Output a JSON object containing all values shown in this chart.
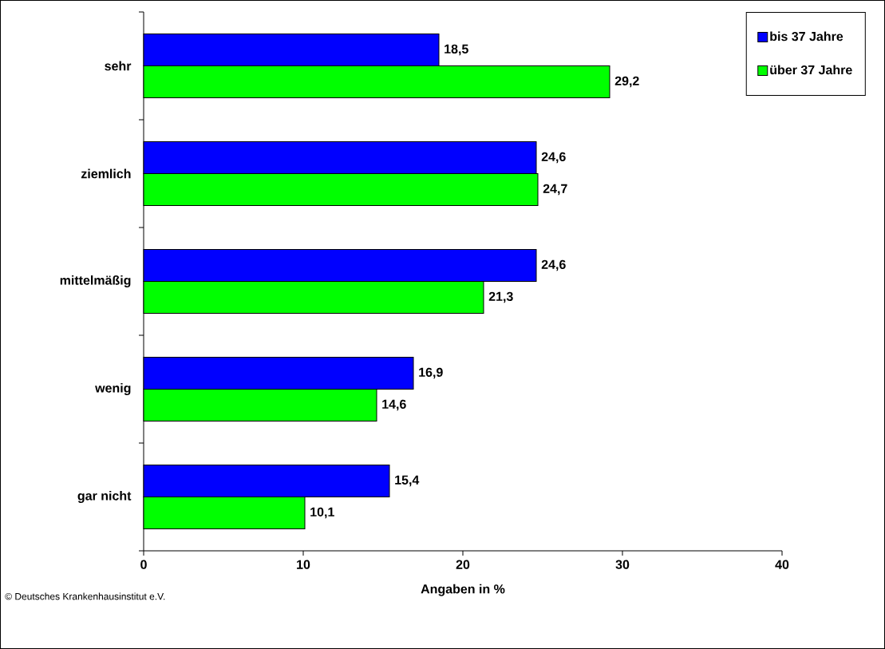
{
  "chart_data": {
    "type": "bar",
    "orientation": "horizontal",
    "xlabel": "Angaben in %",
    "categories": [
      "sehr",
      "ziemlich",
      "mittelmäßig",
      "wenig",
      "gar nicht"
    ],
    "series": [
      {
        "name": "bis 37 Jahre",
        "color": "#0000ff",
        "values": [
          18.5,
          24.6,
          24.6,
          16.9,
          15.4
        ],
        "value_labels": [
          "18,5",
          "24,6",
          "24,6",
          "16,9",
          "15,4"
        ]
      },
      {
        "name": "über 37 Jahre",
        "color": "#00ff00",
        "values": [
          29.2,
          24.7,
          21.3,
          14.6,
          10.1
        ],
        "value_labels": [
          "29,2",
          "24,7",
          "21,3",
          "14,6",
          "10,1"
        ]
      }
    ],
    "xlim": [
      0,
      40
    ],
    "xticks": [
      0,
      10,
      20,
      30,
      40
    ],
    "grid": false,
    "legend": "top right",
    "annotations": [
      "© Deutsches Krankenhausinstitut e.V."
    ]
  }
}
